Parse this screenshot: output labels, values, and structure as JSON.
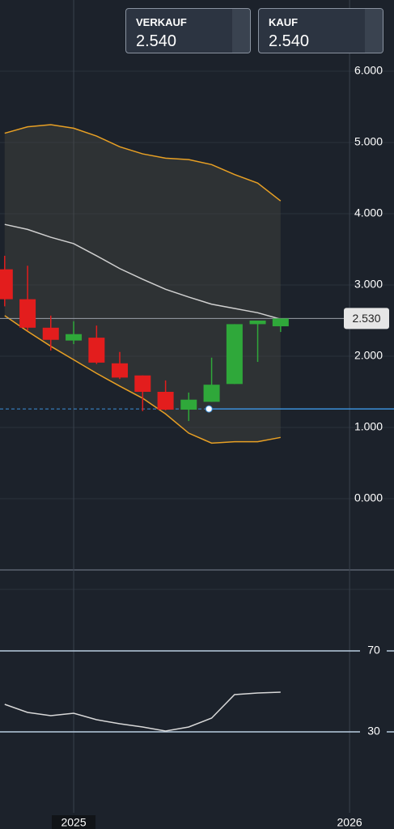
{
  "quotes": [
    {
      "label": "VERKAUF",
      "price": "2.540"
    },
    {
      "label": "KAUF",
      "price": "2.540"
    }
  ],
  "chart_data": [
    {
      "type": "candlestick",
      "x": [
        2024.75,
        2024.833,
        2024.917,
        2025,
        2025.083,
        2025.167,
        2025.25,
        2025.333,
        2025.417,
        2025.5,
        2025.583,
        2025.667,
        2025.75
      ],
      "open": [
        3.22,
        2.8,
        2.4,
        2.22,
        2.26,
        1.9,
        1.73,
        1.5,
        1.25,
        1.36,
        1.61,
        2.45,
        2.42
      ],
      "high": [
        3.41,
        3.27,
        2.57,
        2.49,
        2.43,
        2.06,
        1.73,
        1.66,
        1.49,
        1.98,
        2.45,
        2.5,
        2.53
      ],
      "low": [
        2.7,
        2.36,
        2.08,
        2.17,
        1.89,
        1.68,
        1.23,
        1.24,
        1.09,
        1.36,
        1.61,
        1.92,
        2.34
      ],
      "close": [
        2.8,
        2.4,
        2.23,
        2.31,
        1.91,
        1.7,
        1.5,
        1.25,
        1.39,
        1.6,
        2.45,
        2.5,
        2.53
      ],
      "up_color": "#2fa83a",
      "down_color": "#e31d1d",
      "overlays": [
        {
          "color": "#e8a024",
          "values": [
            5.13,
            5.22,
            5.25,
            5.2,
            5.09,
            4.94,
            4.84,
            4.78,
            4.76,
            4.69,
            4.55,
            4.43,
            4.18
          ]
        },
        {
          "color": "#d0d0d0",
          "values": [
            3.85,
            3.78,
            3.67,
            3.58,
            3.41,
            3.23,
            3.08,
            2.94,
            2.83,
            2.73,
            2.67,
            2.61,
            2.52
          ]
        },
        {
          "color": "#e8a024",
          "values": [
            2.57,
            2.35,
            2.14,
            1.95,
            1.76,
            1.58,
            1.41,
            1.19,
            0.92,
            0.78,
            0.8,
            0.8,
            0.86
          ]
        }
      ],
      "band_fill": "rgba(80,80,70,0.35)",
      "last_price": {
        "value": 2.53,
        "label": "2.530"
      },
      "level": 1.26,
      "level_color": "#3b8fd9",
      "xlim": [
        2024.733,
        2026.161
      ],
      "xticks": [
        2025,
        2026
      ],
      "ylim": [
        -1,
        7
      ],
      "yticks": [
        {
          "value": 0,
          "label": "0.000"
        },
        {
          "value": 1,
          "label": "1.000"
        },
        {
          "value": 2,
          "label": "2.000"
        },
        {
          "value": 3,
          "label": "3.000"
        },
        {
          "value": 4,
          "label": "4.000"
        },
        {
          "value": 5,
          "label": "5.000"
        },
        {
          "value": 6,
          "label": "6.000"
        }
      ],
      "grid": true
    },
    {
      "type": "line",
      "x": [
        2024.75,
        2024.833,
        2024.917,
        2025,
        2025.083,
        2025.167,
        2025.25,
        2025.333,
        2025.417,
        2025.5,
        2025.583,
        2025.667,
        2025.75
      ],
      "values": [
        43.6,
        39.6,
        38,
        39.2,
        36,
        34,
        32.4,
        30.4,
        32.4,
        36.8,
        48.4,
        49.2,
        49.6
      ],
      "color": "#d8d8d8",
      "xlim": [
        2024.733,
        2026.161
      ],
      "xticks": [
        2025,
        2026
      ],
      "ylim": [
        -10,
        110
      ],
      "yticks": [
        30,
        70
      ],
      "tick_color": "#b8cce0"
    }
  ]
}
